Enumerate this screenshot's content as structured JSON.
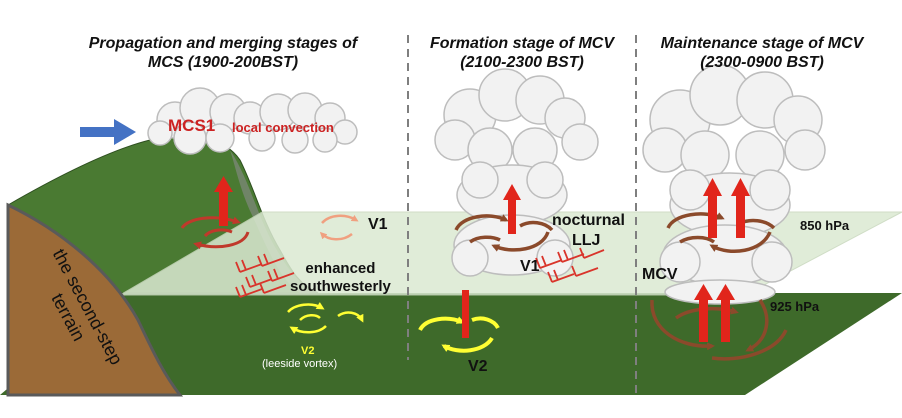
{
  "titles": {
    "stage1_line1": "Propagation and merging stages of",
    "stage1_line2": "MCS (1900-200BST)",
    "stage2_line1": "Formation stage of MCV",
    "stage2_line2": "(2100-2300 BST)",
    "stage3_line1": "Maintenance stage of MCV",
    "stage3_line2": "(2300-0900 BST)"
  },
  "labels": {
    "mcs1": "MCS1",
    "local_convection": "local convection",
    "v1_left": "V1",
    "enhanced_line1": "enhanced",
    "enhanced_line2": "southwesterly",
    "v2_left": "V2",
    "leeside": "(leeside vortex)",
    "nocturnal": "nocturnal",
    "llj": "LLJ",
    "v1_mid": "V1",
    "v2_mid": "V2",
    "mcv": "MCV",
    "hpa850": "850 hPa",
    "hpa925": "925 hPa",
    "terrain_line1": "the second-step",
    "terrain_line2": "terrain"
  },
  "colors": {
    "ground": "#3e6a2a",
    "mountain_top": "#4a7a32",
    "terrain": "#9b6a37",
    "plane850": "#dbe9d2",
    "cloud_fill": "#f2f2f2",
    "cloud_stroke": "#bdbdbd",
    "updraft": "#e1251b",
    "vortex_brown": "#8b4a2b",
    "vortex_red": "#c0392b",
    "vortex_orange": "#f0a080",
    "vortex_yellow": "#ffff33",
    "wind_barb": "#d9342b",
    "inflow_arrow": "#4472c4",
    "divider": "#7f7f7f",
    "mcs_text": "#cc2222"
  }
}
